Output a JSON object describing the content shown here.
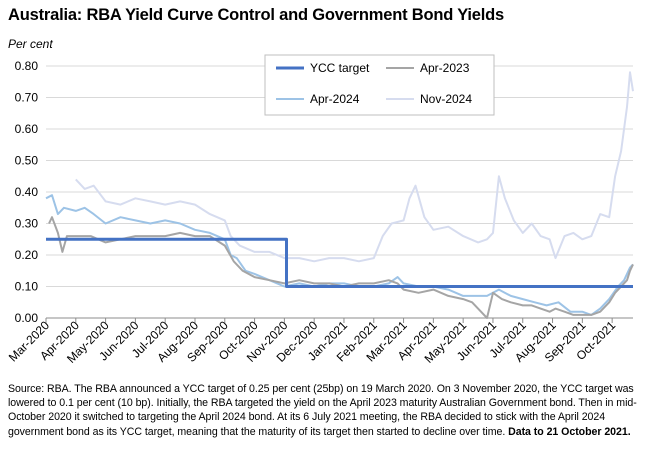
{
  "title": "Australia: RBA Yield Curve Control and Government Bond Yields",
  "y_unit_label": "Per cent",
  "source_text": "Source: RBA.  The RBA announced a YCC target of 0.25 per cent (25bp) on 19 March 2020.  On 3 November 2020, the YCC target was lowered to 0.1 per cent (10 bp).  Initially, the RBA targeted the yield on the April 2023 maturity Australian Government bond. Then in mid-October 2020 it switched to targeting the April 2024 bond. At its 6 July 2021 meeting, the RBA decided to stick with the April 2024 government bond as its YCC target, meaning that the maturity of its target then started to decline over time.",
  "source_bold": "Data to 21 October 2021.",
  "chart_data": {
    "type": "line",
    "title": "Australia: RBA Yield Curve Control and Government Bond Yields",
    "ylabel": "Per cent",
    "ylim": [
      0,
      0.8
    ],
    "y_ticks": [
      "0.00",
      "0.10",
      "0.20",
      "0.30",
      "0.40",
      "0.50",
      "0.60",
      "0.70",
      "0.80"
    ],
    "x_tick_labels": [
      "Mar-2020",
      "Apr-2020",
      "May-2020",
      "Jun-2020",
      "Jul-2020",
      "Aug-2020",
      "Sep-2020",
      "Oct-2020",
      "Nov-2020",
      "Dec-2020",
      "Jan-2021",
      "Feb-2021",
      "Mar-2021",
      "Apr-2021",
      "May-2021",
      "Jun-2021",
      "Jul-2021",
      "Aug-2021",
      "Sep-2021",
      "Oct-2021"
    ],
    "x_range": [
      0,
      19.7
    ],
    "grid": "horizontal",
    "legend_position": "top-center",
    "series": [
      {
        "name": "YCC target",
        "color": "#4472c4",
        "width": 3,
        "points": [
          [
            0,
            0.25
          ],
          [
            7.55,
            0.25
          ],
          [
            7.55,
            0.25
          ],
          [
            8.07,
            0.25
          ],
          [
            8.07,
            0.1
          ],
          [
            19.7,
            0.1
          ]
        ]
      },
      {
        "name": "Apr-2023",
        "color": "#a5a5a5",
        "width": 2,
        "points": [
          [
            0.1,
            0.3
          ],
          [
            0.2,
            0.32
          ],
          [
            0.4,
            0.27
          ],
          [
            0.55,
            0.21
          ],
          [
            0.7,
            0.26
          ],
          [
            1.0,
            0.26
          ],
          [
            1.5,
            0.26
          ],
          [
            2.0,
            0.24
          ],
          [
            2.5,
            0.25
          ],
          [
            3.0,
            0.26
          ],
          [
            3.5,
            0.26
          ],
          [
            4.0,
            0.26
          ],
          [
            4.5,
            0.27
          ],
          [
            5.0,
            0.26
          ],
          [
            5.5,
            0.26
          ],
          [
            6.0,
            0.23
          ],
          [
            6.3,
            0.18
          ],
          [
            6.6,
            0.15
          ],
          [
            7.0,
            0.13
          ],
          [
            7.5,
            0.12
          ],
          [
            8.0,
            0.11
          ],
          [
            8.5,
            0.12
          ],
          [
            9.0,
            0.11
          ],
          [
            9.5,
            0.11
          ],
          [
            10.0,
            0.1
          ],
          [
            10.5,
            0.11
          ],
          [
            11.0,
            0.11
          ],
          [
            11.5,
            0.12
          ],
          [
            11.8,
            0.11
          ],
          [
            12.0,
            0.09
          ],
          [
            12.5,
            0.08
          ],
          [
            13.0,
            0.09
          ],
          [
            13.5,
            0.07
          ],
          [
            14.0,
            0.06
          ],
          [
            14.3,
            0.05
          ],
          [
            14.6,
            0.02
          ],
          [
            14.8,
            0.0
          ],
          [
            15.0,
            0.08
          ],
          [
            15.3,
            0.06
          ],
          [
            15.6,
            0.05
          ],
          [
            16.0,
            0.04
          ],
          [
            16.3,
            0.04
          ],
          [
            16.6,
            0.03
          ],
          [
            16.9,
            0.02
          ],
          [
            17.1,
            0.03
          ],
          [
            17.4,
            0.02
          ],
          [
            17.7,
            0.01
          ],
          [
            18.0,
            0.01
          ],
          [
            18.3,
            0.01
          ],
          [
            18.6,
            0.02
          ],
          [
            18.9,
            0.05
          ],
          [
            19.1,
            0.08
          ],
          [
            19.3,
            0.1
          ],
          [
            19.5,
            0.12
          ],
          [
            19.6,
            0.15
          ],
          [
            19.7,
            0.17
          ]
        ]
      },
      {
        "name": "Apr-2024",
        "color": "#9dc3e6",
        "width": 2,
        "points": [
          [
            0.0,
            0.38
          ],
          [
            0.2,
            0.39
          ],
          [
            0.4,
            0.33
          ],
          [
            0.6,
            0.35
          ],
          [
            1.0,
            0.34
          ],
          [
            1.3,
            0.35
          ],
          [
            1.6,
            0.33
          ],
          [
            2.0,
            0.3
          ],
          [
            2.5,
            0.32
          ],
          [
            3.0,
            0.31
          ],
          [
            3.5,
            0.3
          ],
          [
            4.0,
            0.31
          ],
          [
            4.5,
            0.3
          ],
          [
            5.0,
            0.28
          ],
          [
            5.5,
            0.27
          ],
          [
            6.0,
            0.25
          ],
          [
            6.2,
            0.2
          ],
          [
            6.4,
            0.19
          ],
          [
            6.7,
            0.15
          ],
          [
            7.0,
            0.14
          ],
          [
            7.5,
            0.12
          ],
          [
            8.0,
            0.1
          ],
          [
            8.5,
            0.11
          ],
          [
            9.0,
            0.1
          ],
          [
            9.5,
            0.11
          ],
          [
            10.0,
            0.11
          ],
          [
            10.5,
            0.1
          ],
          [
            11.0,
            0.1
          ],
          [
            11.5,
            0.11
          ],
          [
            11.8,
            0.13
          ],
          [
            12.0,
            0.11
          ],
          [
            12.5,
            0.1
          ],
          [
            13.0,
            0.1
          ],
          [
            13.5,
            0.09
          ],
          [
            14.0,
            0.07
          ],
          [
            14.5,
            0.07
          ],
          [
            14.8,
            0.07
          ],
          [
            15.2,
            0.09
          ],
          [
            15.6,
            0.07
          ],
          [
            16.0,
            0.06
          ],
          [
            16.4,
            0.05
          ],
          [
            16.8,
            0.04
          ],
          [
            17.2,
            0.05
          ],
          [
            17.6,
            0.02
          ],
          [
            18.0,
            0.02
          ],
          [
            18.3,
            0.01
          ],
          [
            18.6,
            0.03
          ],
          [
            18.9,
            0.06
          ],
          [
            19.2,
            0.1
          ],
          [
            19.4,
            0.12
          ],
          [
            19.6,
            0.16
          ],
          [
            19.7,
            0.17
          ]
        ]
      },
      {
        "name": "Nov-2024",
        "color": "#d6dcef",
        "width": 2,
        "points": [
          [
            1.0,
            0.44
          ],
          [
            1.3,
            0.41
          ],
          [
            1.6,
            0.42
          ],
          [
            2.0,
            0.37
          ],
          [
            2.5,
            0.36
          ],
          [
            3.0,
            0.38
          ],
          [
            3.5,
            0.37
          ],
          [
            4.0,
            0.36
          ],
          [
            4.5,
            0.37
          ],
          [
            5.0,
            0.36
          ],
          [
            5.5,
            0.33
          ],
          [
            6.0,
            0.31
          ],
          [
            6.2,
            0.26
          ],
          [
            6.5,
            0.23
          ],
          [
            7.0,
            0.21
          ],
          [
            7.5,
            0.21
          ],
          [
            8.0,
            0.19
          ],
          [
            8.5,
            0.19
          ],
          [
            9.0,
            0.18
          ],
          [
            9.5,
            0.19
          ],
          [
            10.0,
            0.19
          ],
          [
            10.5,
            0.18
          ],
          [
            11.0,
            0.19
          ],
          [
            11.3,
            0.26
          ],
          [
            11.6,
            0.3
          ],
          [
            12.0,
            0.31
          ],
          [
            12.2,
            0.38
          ],
          [
            12.4,
            0.42
          ],
          [
            12.7,
            0.32
          ],
          [
            13.0,
            0.28
          ],
          [
            13.5,
            0.29
          ],
          [
            14.0,
            0.26
          ],
          [
            14.5,
            0.24
          ],
          [
            14.8,
            0.25
          ],
          [
            15.0,
            0.27
          ],
          [
            15.2,
            0.45
          ],
          [
            15.4,
            0.38
          ],
          [
            15.7,
            0.31
          ],
          [
            16.0,
            0.27
          ],
          [
            16.3,
            0.3
          ],
          [
            16.6,
            0.26
          ],
          [
            16.9,
            0.25
          ],
          [
            17.1,
            0.19
          ],
          [
            17.4,
            0.26
          ],
          [
            17.7,
            0.27
          ],
          [
            18.0,
            0.25
          ],
          [
            18.3,
            0.26
          ],
          [
            18.6,
            0.33
          ],
          [
            18.9,
            0.32
          ],
          [
            19.1,
            0.45
          ],
          [
            19.3,
            0.53
          ],
          [
            19.5,
            0.67
          ],
          [
            19.6,
            0.78
          ],
          [
            19.7,
            0.72
          ]
        ]
      }
    ]
  }
}
